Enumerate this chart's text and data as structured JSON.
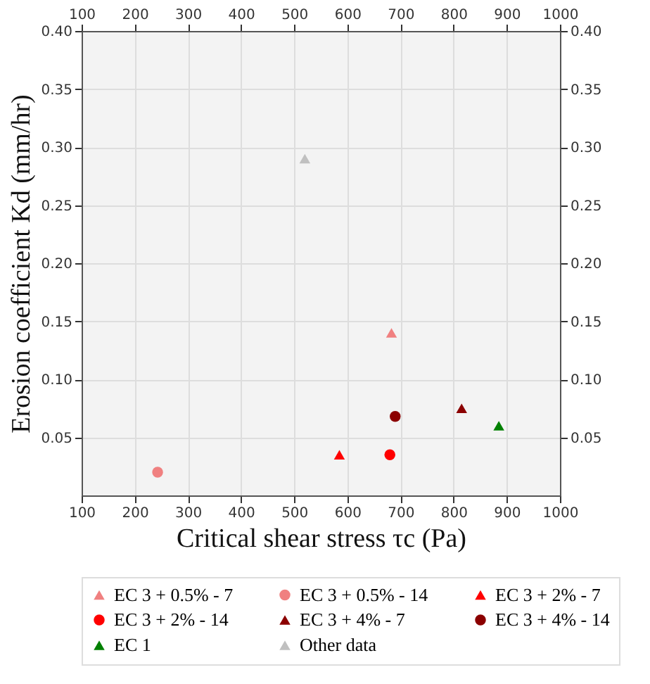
{
  "chart_data": {
    "type": "scatter",
    "xlabel": "Critical shear stress τc (Pa)",
    "ylabel": "Erosion coefficient Kd (mm/hr)",
    "xlim": [
      100,
      1000
    ],
    "xticks": [
      100,
      200,
      300,
      400,
      500,
      600,
      700,
      800,
      900,
      1000
    ],
    "ylim": [
      0,
      0.4
    ],
    "yticks": [
      {
        "value": 0.05,
        "label": "0.05"
      },
      {
        "value": 0.1,
        "label": "0.10"
      },
      {
        "value": 0.15,
        "label": "0.15"
      },
      {
        "value": 0.2,
        "label": "0.20"
      },
      {
        "value": 0.25,
        "label": "0.25"
      },
      {
        "value": 0.3,
        "label": "0.30"
      },
      {
        "value": 0.35,
        "label": "0.35"
      },
      {
        "value": 0.4,
        "label": "0.40"
      }
    ],
    "x2lim": [
      100,
      1000
    ],
    "x2ticks": [
      100,
      200,
      300,
      400,
      500,
      600,
      700,
      800,
      900,
      1000
    ],
    "y2lim": [
      0,
      0.4
    ],
    "y2ticks": [
      {
        "value": 0.05,
        "label": "0.05"
      },
      {
        "value": 0.1,
        "label": "0.10"
      },
      {
        "value": 0.15,
        "label": "0.15"
      },
      {
        "value": 0.2,
        "label": "0.20"
      },
      {
        "value": 0.25,
        "label": "0.25"
      },
      {
        "value": 0.3,
        "label": "0.30"
      },
      {
        "value": 0.35,
        "label": "0.35"
      },
      {
        "value": 0.4,
        "label": "0.40"
      }
    ],
    "grid": true,
    "legend": "bottom",
    "series": [
      {
        "name": "EC 3 + 0.5% - 7",
        "color": "#f08080",
        "marker": "triangle",
        "x": [
          683
        ],
        "values": [
          0.14
        ]
      },
      {
        "name": "EC 3 + 0.5% - 14",
        "color": "#f08080",
        "marker": "circle",
        "x": [
          243
        ],
        "values": [
          0.02
        ]
      },
      {
        "name": "EC 3 + 2% - 7",
        "color": "#ff0000",
        "marker": "triangle",
        "x": [
          585
        ],
        "values": [
          0.035
        ]
      },
      {
        "name": "EC 3 + 2% - 14",
        "color": "#ff0000",
        "marker": "circle",
        "x": [
          680
        ],
        "values": [
          0.035
        ]
      },
      {
        "name": "EC 3 + 4% - 7",
        "color": "#8b0000",
        "marker": "triangle",
        "x": [
          815
        ],
        "values": [
          0.075
        ]
      },
      {
        "name": "EC 3 + 4% - 14",
        "color": "#8b0000",
        "marker": "circle",
        "x": [
          690
        ],
        "values": [
          0.068
        ]
      },
      {
        "name": "EC 1",
        "color": "#008000",
        "marker": "triangle",
        "x": [
          885
        ],
        "values": [
          0.06
        ]
      },
      {
        "name": "Other data",
        "color": "#c0c0c0",
        "marker": "triangle",
        "x": [
          520
        ],
        "values": [
          0.29
        ]
      }
    ]
  }
}
